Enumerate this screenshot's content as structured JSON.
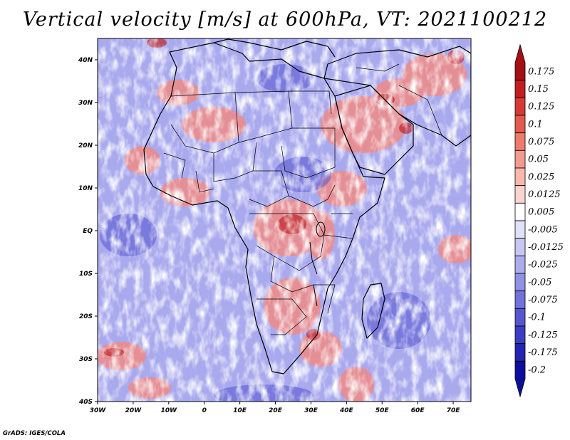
{
  "title": "Vertical velocity [m/s] at 600hPa, VT: 2021100212",
  "credit": "GrADS: IGES/COLA",
  "map": {
    "lon_range": [
      -30,
      75
    ],
    "lat_range": [
      -40,
      45
    ],
    "x_ticks": [
      "30W",
      "20W",
      "10W",
      "0",
      "10E",
      "20E",
      "30E",
      "40E",
      "50E",
      "60E",
      "70E"
    ],
    "y_ticks": [
      "40N",
      "30N",
      "20N",
      "10N",
      "EQ",
      "10S",
      "20S",
      "30S",
      "40S"
    ]
  },
  "colorbar": {
    "labels": [
      "0.175",
      "0.15",
      "0.125",
      "0.1",
      "0.075",
      "0.05",
      "0.025",
      "0.0125",
      "0.005",
      "-0.005",
      "-0.0125",
      "-0.025",
      "-0.05",
      "-0.075",
      "-0.1",
      "-0.125",
      "-0.175",
      "-0.2"
    ],
    "colors": [
      "#a50f15",
      "#c21d22",
      "#d63a37",
      "#e45a50",
      "#ed7b6e",
      "#f39b8e",
      "#f7b9ad",
      "#fad5cd",
      "#ffffff",
      "#e0e0f8",
      "#c7c7f2",
      "#acacec",
      "#9090e4",
      "#7272da",
      "#5656d0",
      "#3c3cc4",
      "#2424b4",
      "#0e0e9c"
    ]
  }
}
